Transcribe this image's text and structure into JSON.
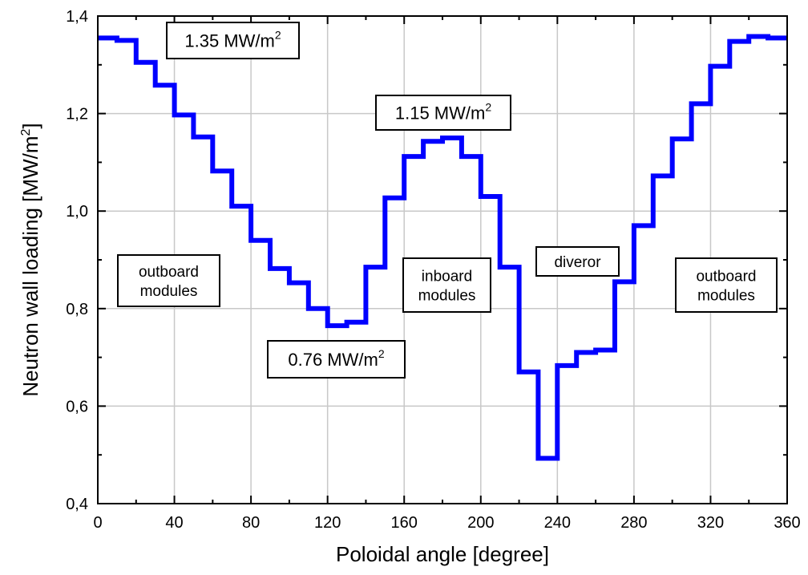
{
  "chart_data": {
    "type": "line",
    "xlabel": "Poloidal angle [degree]",
    "ylabel": "Neutron wall loading [MW/m",
    "ylabel_sup": "2",
    "ylabel_close": "]",
    "xlim": [
      0,
      360
    ],
    "ylim": [
      0.4,
      1.4
    ],
    "x_ticks": [
      0,
      40,
      80,
      120,
      160,
      200,
      240,
      280,
      320,
      360
    ],
    "y_ticks": [
      0.4,
      0.6,
      0.8,
      1.0,
      1.2,
      1.4
    ],
    "x_tick_labels": [
      "0",
      "40",
      "80",
      "120",
      "160",
      "200",
      "240",
      "280",
      "320",
      "360"
    ],
    "y_tick_labels": [
      "0,4",
      "0,6",
      "0,8",
      "1,0",
      "1,2",
      "1,4"
    ],
    "grid": true,
    "line_color": "#0000ff",
    "series": [
      {
        "step_edges": [
          0,
          10,
          20,
          30,
          40,
          50,
          60,
          70,
          80,
          90,
          100,
          110,
          120,
          130,
          140,
          150,
          160,
          170,
          180,
          190,
          200,
          210,
          220,
          230,
          240,
          250,
          260,
          270,
          280,
          290,
          300,
          310,
          320,
          330,
          340,
          350,
          360
        ],
        "values": [
          1.355,
          1.35,
          1.305,
          1.258,
          1.197,
          1.152,
          1.082,
          1.01,
          0.94,
          0.882,
          0.853,
          0.8,
          0.765,
          0.772,
          0.885,
          1.027,
          1.112,
          1.143,
          1.15,
          1.112,
          1.03,
          0.885,
          0.67,
          0.493,
          0.683,
          0.71,
          0.715,
          0.855,
          0.97,
          1.072,
          1.148,
          1.22,
          1.297,
          1.348,
          1.358,
          1.355
        ]
      }
    ],
    "annotations": [
      {
        "text": "1.35 MW/m",
        "sup": "2",
        "boxed": true
      },
      {
        "text": "1.15 MW/m",
        "sup": "2",
        "boxed": true
      },
      {
        "text": "0.76 MW/m",
        "sup": "2",
        "boxed": true
      },
      {
        "lines": [
          "outboard",
          "modules"
        ],
        "boxed": true
      },
      {
        "lines": [
          "inboard",
          "modules"
        ],
        "boxed": true
      },
      {
        "lines": [
          "diveror"
        ],
        "boxed": true
      },
      {
        "lines": [
          "outboard",
          "modules"
        ],
        "boxed": true
      }
    ]
  }
}
